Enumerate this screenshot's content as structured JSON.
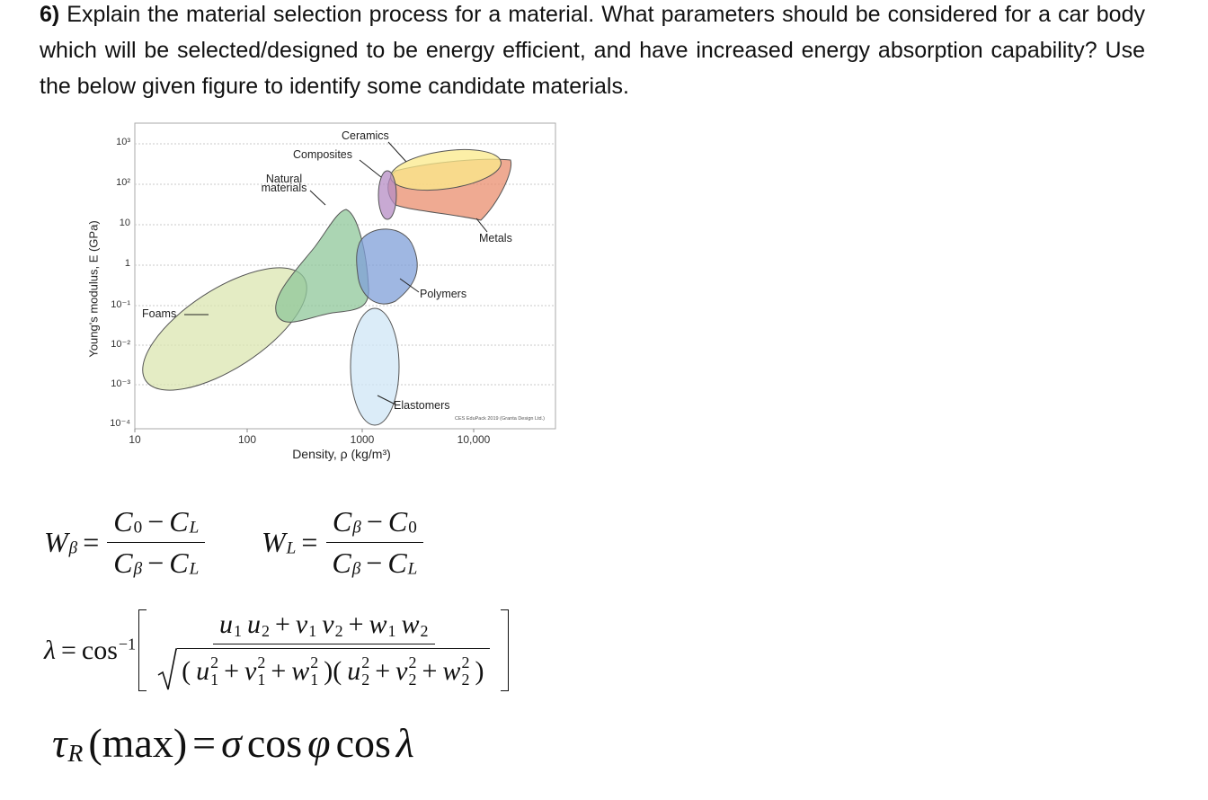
{
  "question": {
    "number": "6)",
    "text": "Explain the material selection process for a material. What parameters should be considered for a car body which will be selected/designed to be energy efficient, and have increased energy absorption capability? Use the below given figure to identify some candidate materials."
  },
  "figure": {
    "y_label": "Young's modulus, E (GPa)",
    "x_label": "Density, ρ (kg/m³)",
    "y_tick_labels": [
      "10³",
      "10²",
      "10",
      "1",
      "10⁻¹",
      "10⁻²",
      "10⁻³",
      "10⁻⁴"
    ],
    "x_tick_labels": [
      "10",
      "100",
      "1000",
      "10,000"
    ],
    "families": [
      "Ceramics",
      "Composites",
      "Natural materials",
      "Metals",
      "Polymers",
      "Foams",
      "Elastomers"
    ],
    "credit": "CES EduPack 2019 (Granta Design Ltd.)"
  },
  "equations": [
    {
      "lhs": [
        {
          "t": "W",
          "sub": "β"
        }
      ],
      "rel": "=",
      "num": [
        {
          "t": "C",
          "sub": "0"
        },
        "−",
        {
          "t": "C",
          "sub": "L"
        }
      ],
      "den": [
        {
          "t": "C",
          "sub": "β"
        },
        "−",
        {
          "t": "C",
          "sub": "L"
        }
      ]
    },
    {
      "lhs": [
        {
          "t": "W",
          "sub": "L"
        }
      ],
      "rel": "=",
      "num": [
        {
          "t": "C",
          "sub": "β"
        },
        "−",
        {
          "t": "C",
          "sub": "0"
        }
      ],
      "den": [
        {
          "t": "C",
          "sub": "β"
        },
        "−",
        {
          "t": "C",
          "sub": "L"
        }
      ]
    },
    {
      "lhs": [
        "λ",
        "=",
        {
          "t": "cos",
          "sup": "−1"
        }
      ],
      "num": [
        {
          "t": "u",
          "sub": "1"
        },
        {
          "t": "u",
          "sub": "2"
        },
        "+",
        {
          "t": "v",
          "sub": "1"
        },
        {
          "t": "v",
          "sub": "2"
        },
        "+",
        {
          "t": "w",
          "sub": "1"
        },
        {
          "t": "w",
          "sub": "2"
        }
      ],
      "den": [
        "(",
        {
          "t": "u",
          "sub": "1",
          "sup": "2"
        },
        "+",
        {
          "t": "v",
          "sub": "1",
          "sup": "2"
        },
        "+",
        {
          "t": "w",
          "sub": "1",
          "sup": "2"
        },
        ")(",
        {
          "t": "u",
          "sub": "2",
          "sup": "2"
        },
        "+",
        {
          "t": "v",
          "sub": "2",
          "sup": "2"
        },
        "+",
        {
          "t": "w",
          "sub": "2",
          "sup": "2"
        },
        ")"
      ]
    },
    {
      "lhs": [
        {
          "t": "τ",
          "sub": "R"
        },
        "(max)",
        "=",
        "σ",
        "cos",
        "φ",
        "cos",
        "λ"
      ]
    }
  ]
}
